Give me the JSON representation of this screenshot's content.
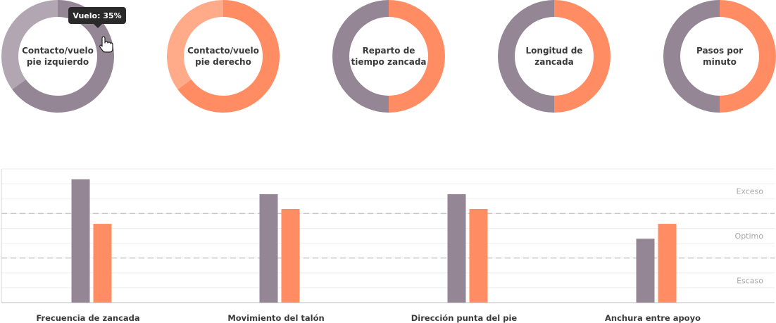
{
  "colors": {
    "purple": "#958696",
    "purple_light": "#b2a6b2",
    "orange": "#ff8c62",
    "orange_light": "#ffab8a",
    "grid": "#eeeeee",
    "dash": "#c8c8c8",
    "tooltip_bg": "#2a2a2a"
  },
  "chart_data": [
    {
      "type": "pie",
      "donuts": [
        {
          "label_lines": [
            "Contacto/vuelo",
            "pie izquierdo"
          ],
          "slices": [
            {
              "value": 65,
              "color": "purple"
            },
            {
              "value": 35,
              "color": "purple_light"
            }
          ]
        },
        {
          "label_lines": [
            "Contacto/vuelo",
            "pie derecho"
          ],
          "slices": [
            {
              "value": 65,
              "color": "orange"
            },
            {
              "value": 35,
              "color": "orange_light"
            }
          ]
        },
        {
          "label_lines": [
            "Reparto de",
            "tiempo zancada"
          ],
          "slices": [
            {
              "value": 50,
              "color": "orange"
            },
            {
              "value": 50,
              "color": "purple"
            }
          ]
        },
        {
          "label_lines": [
            "Longitud de",
            "zancada"
          ],
          "slices": [
            {
              "value": 50,
              "color": "orange"
            },
            {
              "value": 50,
              "color": "purple"
            }
          ]
        },
        {
          "label_lines": [
            "Pasos por",
            "minuto"
          ],
          "slices": [
            {
              "value": 50,
              "color": "orange"
            },
            {
              "value": 50,
              "color": "purple"
            }
          ]
        }
      ],
      "tooltip": {
        "text": "Vuelo: 35%"
      }
    },
    {
      "type": "bar",
      "categories": [
        "Frecuencia de zancada",
        "Movimiento del talón",
        "Dirección punta del pie",
        "Anchura entre apoyo"
      ],
      "series": [
        {
          "color": "purple",
          "values": [
            8.3,
            7.3,
            7.3,
            4.3
          ]
        },
        {
          "color": "orange",
          "values": [
            5.3,
            6.3,
            6.3,
            5.3
          ]
        }
      ],
      "ylim": [
        0,
        9
      ],
      "zones": [
        {
          "label": "Exceso",
          "from": 6,
          "to": 9
        },
        {
          "label": "Optimo",
          "from": 3,
          "to": 6
        },
        {
          "label": "Escaso",
          "from": 0,
          "to": 3
        }
      ],
      "thresholds": [
        3,
        6
      ]
    }
  ]
}
